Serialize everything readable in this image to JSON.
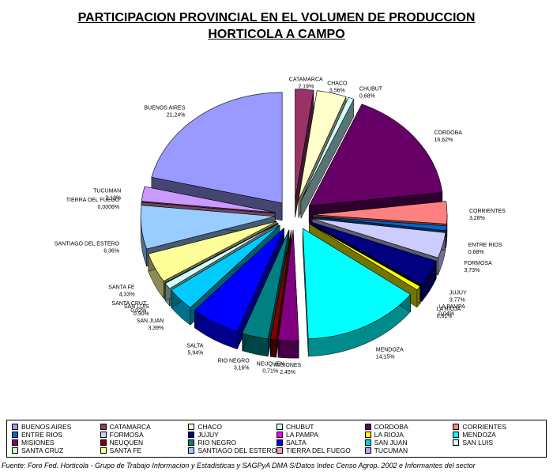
{
  "chart_data": {
    "type": "pie",
    "title_line1": "PARTICIPACION PROVINCIAL EN EL VOLUMEN DE PRODUCCION",
    "title_line2": "HORTICOLA A CAMPO",
    "slices": [
      {
        "name": "CATAMARCA",
        "value": 2.19,
        "label": "2,19%",
        "color": "#993366"
      },
      {
        "name": "CHACO",
        "value": 3.56,
        "label": "3,56%",
        "color": "#ffffcc"
      },
      {
        "name": "CHUBUT",
        "value": 0.68,
        "label": "0,68%",
        "color": "#ccffff"
      },
      {
        "name": "CORDOBA",
        "value": 16.62,
        "label": "16,62%",
        "color": "#660066"
      },
      {
        "name": "CORRIENTES",
        "value": 3.28,
        "label": "3,28%",
        "color": "#ff8080"
      },
      {
        "name": "ENTRE RIOS",
        "value": 0.68,
        "label": "0,68%",
        "color": "#0066cc"
      },
      {
        "name": "FORMOSA",
        "value": 3.73,
        "label": "3,73%",
        "color": "#ccccff"
      },
      {
        "name": "JUJUY",
        "value": 3.77,
        "label": "3,77%",
        "color": "#000080"
      },
      {
        "name": "LA PAMPA",
        "value": 0.04,
        "label": "0,04%",
        "color": "#ff00ff"
      },
      {
        "name": "LA RIOJA",
        "value": 0.61,
        "label": "0,61%",
        "color": "#ffff00"
      },
      {
        "name": "MENDOZA",
        "value": 14.15,
        "label": "14,15%",
        "color": "#00ffff"
      },
      {
        "name": "MISIONES",
        "value": 2.45,
        "label": "2,45%",
        "color": "#800080"
      },
      {
        "name": "NEUQUEN",
        "value": 0.71,
        "label": "0,71%",
        "color": "#800000"
      },
      {
        "name": "RIO NEGRO",
        "value": 3.16,
        "label": "3,16%",
        "color": "#008080"
      },
      {
        "name": "SALTA",
        "value": 5.94,
        "label": "5,94%",
        "color": "#0000ff"
      },
      {
        "name": "SAN JUAN",
        "value": 3.39,
        "label": "3,39%",
        "color": "#00ccff"
      },
      {
        "name": "SAN LUIS",
        "value": 0.9,
        "label": "0,90%",
        "color": "#ccffff"
      },
      {
        "name": "SANTA CRUZ",
        "value": 0.02,
        "label": "0,02%",
        "color": "#ccffcc"
      },
      {
        "name": "SANTA FE",
        "value": 4.33,
        "label": "4,33%",
        "color": "#ffff99"
      },
      {
        "name": "SANTIAGO DEL ESTERO",
        "value": 6.36,
        "label": "6,36%",
        "color": "#99ccff"
      },
      {
        "name": "TIERRA DEL FUEGO",
        "value": 0.0006,
        "label": "0,0006%",
        "color": "#ff99cc"
      },
      {
        "name": "TUCUMAN",
        "value": 2.13,
        "label": "2,13%",
        "color": "#cc99ff"
      },
      {
        "name": "BUENOS AIRES",
        "value": 21.24,
        "label": "21,24%",
        "color": "#9999ff"
      }
    ],
    "legend_placement": "bottom",
    "legend_order": [
      "BUENOS AIRES",
      "CATAMARCA",
      "CHACO",
      "CHUBUT",
      "CORDOBA",
      "CORRIENTES",
      "ENTRE RIOS",
      "FORMOSA",
      "JUJUY",
      "LA PAMPA",
      "LA RIOJA",
      "MENDOZA",
      "MISIONES",
      "NEUQUEN",
      "RIO NEGRO",
      "SALTA",
      "SAN JUAN",
      "SAN LUIS",
      "SANTA CRUZ",
      "SANTA FE",
      "SANTIAGO DEL ESTERO",
      "TIERRA DEL FUEGO",
      "TUCUMAN"
    ],
    "source": "Fuente: Foro Fed. Horticola - Grupo de Trabajo Informacion y Estadisticas y SAGPyA DMA S/Datos Indec Censo Agrop. 2002 e Informantes del sector"
  }
}
